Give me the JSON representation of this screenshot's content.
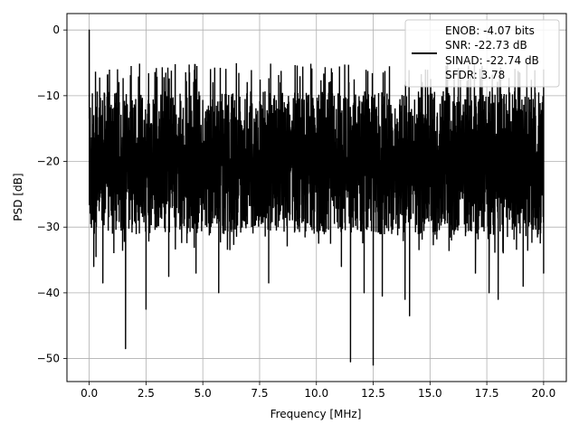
{
  "chart_data": {
    "type": "line",
    "title": "",
    "xlabel": "Frequency [MHz]",
    "ylabel": "PSD [dB]",
    "xlim": [
      -0.98,
      21.0
    ],
    "ylim": [
      -53.5,
      2.5
    ],
    "xticks": [
      0.0,
      2.5,
      5.0,
      7.5,
      10.0,
      12.5,
      15.0,
      17.5,
      20.0
    ],
    "xtick_labels": [
      "0.0",
      "2.5",
      "5.0",
      "7.5",
      "10.0",
      "12.5",
      "15.0",
      "17.5",
      "20.0"
    ],
    "yticks": [
      0,
      -10,
      -20,
      -30,
      -40,
      -50
    ],
    "ytick_labels": [
      "0",
      "−10",
      "−20",
      "−30",
      "−40",
      "−50"
    ],
    "grid": true,
    "line_color": "#000000",
    "series": [
      {
        "name": "",
        "approx_band": {
          "x_start": 0.0,
          "x_end": 20.0,
          "typical_min": -30,
          "typical_max": -8,
          "median": -19
        },
        "points": [
          {
            "x": 0.0,
            "y": 0.0
          },
          {
            "x": 0.04,
            "y": -18
          },
          {
            "x": 0.1,
            "y": -25
          },
          {
            "x": 0.2,
            "y": -36
          },
          {
            "x": 0.3,
            "y": -34.5
          },
          {
            "x": 0.6,
            "y": -38.5
          },
          {
            "x": 1.6,
            "y": -48.5
          },
          {
            "x": 2.5,
            "y": -42.5
          },
          {
            "x": 3.5,
            "y": -37.5
          },
          {
            "x": 4.7,
            "y": -37
          },
          {
            "x": 5.7,
            "y": -40
          },
          {
            "x": 7.9,
            "y": -38.5
          },
          {
            "x": 9.5,
            "y": -31.5
          },
          {
            "x": 11.1,
            "y": -36
          },
          {
            "x": 11.5,
            "y": -50.5
          },
          {
            "x": 12.1,
            "y": -40
          },
          {
            "x": 12.5,
            "y": -51
          },
          {
            "x": 12.9,
            "y": -40.5
          },
          {
            "x": 13.9,
            "y": -41
          },
          {
            "x": 14.1,
            "y": -43.5
          },
          {
            "x": 17.0,
            "y": -37
          },
          {
            "x": 17.6,
            "y": -40
          },
          {
            "x": 18.0,
            "y": -41
          },
          {
            "x": 19.1,
            "y": -39
          },
          {
            "x": 20.0,
            "y": -37
          }
        ]
      }
    ],
    "legend": {
      "placement": "top-right",
      "entries": [
        "ENOB: -4.07 bits",
        "SNR: -22.73 dB",
        "SINAD: -22.74 dB",
        "SFDR: 3.78"
      ]
    }
  }
}
